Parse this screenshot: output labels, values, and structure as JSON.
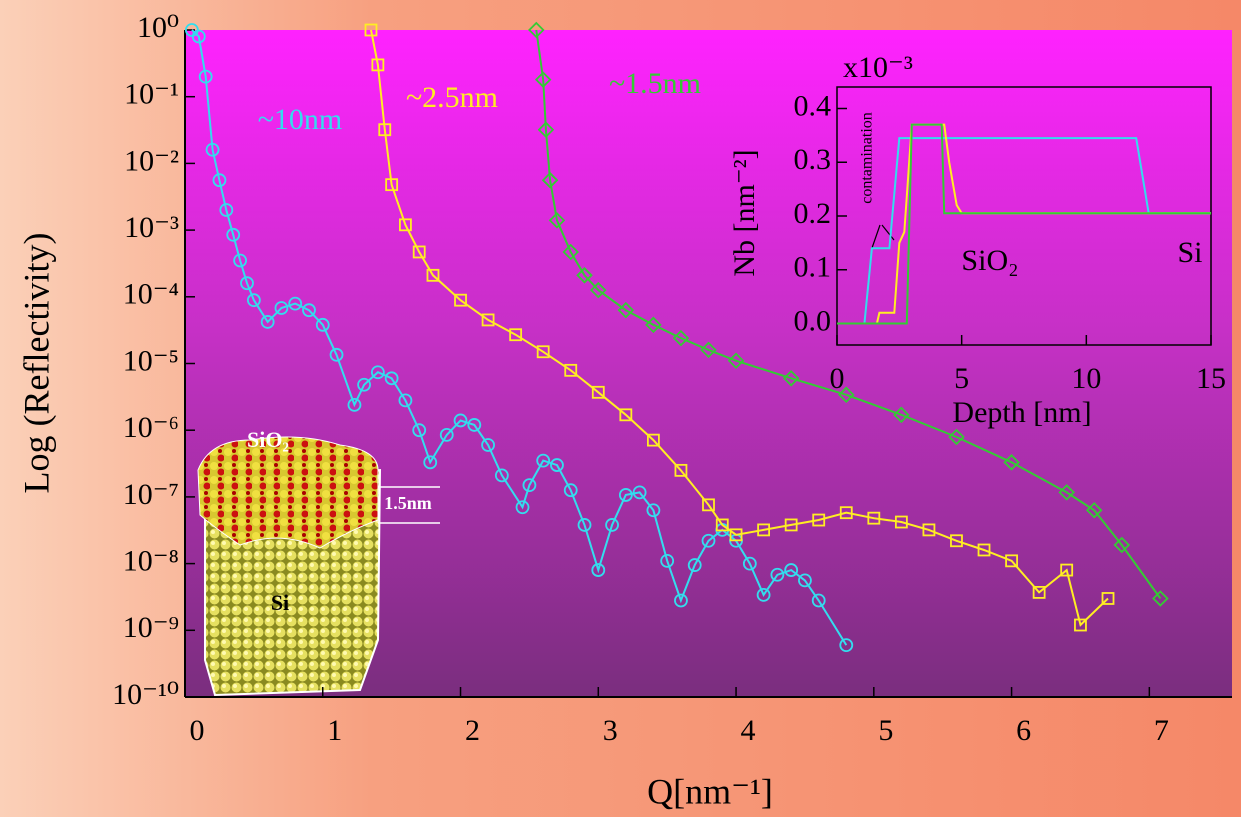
{
  "chart_data": [
    {
      "type": "line",
      "y_label": "Log (Reflectivity)",
      "x_label": "Q[nm⁻¹]",
      "log_y": true,
      "xlim": [
        0,
        7.6
      ],
      "ylim": [
        1e-10,
        1
      ],
      "xticks": [
        0,
        1,
        2,
        3,
        4,
        5,
        6,
        7
      ],
      "yticks": [
        {
          "value": 1,
          "label": "10⁰"
        },
        {
          "value": 0.1,
          "label": "10⁻¹"
        },
        {
          "value": 0.01,
          "label": "10⁻²"
        },
        {
          "value": 0.001,
          "label": "10⁻³"
        },
        {
          "value": 0.0001,
          "label": "10⁻⁴"
        },
        {
          "value": 1e-05,
          "label": "10⁻⁵"
        },
        {
          "value": 1e-06,
          "label": "10⁻⁶"
        },
        {
          "value": 1e-07,
          "label": "10⁻⁷"
        },
        {
          "value": 1e-08,
          "label": "10⁻⁸"
        },
        {
          "value": 1e-09,
          "label": "10⁻⁹"
        },
        {
          "value": 1e-10,
          "label": "10⁻¹⁰"
        }
      ],
      "series": [
        {
          "name": "~10nm",
          "color": "#33ddee",
          "marker": "circle",
          "x": [
            0.05,
            0.1,
            0.15,
            0.2,
            0.25,
            0.3,
            0.35,
            0.4,
            0.45,
            0.5,
            0.6,
            0.7,
            0.8,
            0.9,
            1.0,
            1.1,
            1.23,
            1.3,
            1.4,
            1.5,
            1.6,
            1.7,
            1.78,
            1.9,
            2.0,
            2.1,
            2.2,
            2.3,
            2.45,
            2.5,
            2.6,
            2.7,
            2.8,
            2.9,
            3.0,
            3.1,
            3.2,
            3.3,
            3.4,
            3.5,
            3.6,
            3.7,
            3.8,
            3.9,
            4.0,
            4.1,
            4.2,
            4.3,
            4.4,
            4.5,
            4.6,
            4.8
          ],
          "values": [
            1,
            0.8,
            0.2,
            0.016,
            0.0056,
            0.002,
            0.00085,
            0.00035,
            0.00016,
            8.9e-05,
            4.2e-05,
            6.8e-05,
            7.9e-05,
            6.3e-05,
            3.8e-05,
            1.35e-05,
            2.4e-06,
            4.8e-06,
            7.4e-06,
            6e-06,
            2.8e-06,
            1e-06,
            3.3e-07,
            8.5e-07,
            1.4e-06,
            1.2e-06,
            6e-07,
            2.1e-07,
            7e-08,
            1.5e-07,
            3.5e-07,
            3e-07,
            1.26e-07,
            3.8e-08,
            8e-09,
            3.8e-08,
            1.07e-07,
            1.17e-07,
            6.3e-08,
            1.1e-08,
            2.8e-09,
            9.5e-09,
            2.2e-08,
            3.2e-08,
            2.2e-08,
            1e-08,
            3.4e-09,
            6.8e-09,
            8e-09,
            5.6e-09,
            2.8e-09,
            6e-10
          ]
        },
        {
          "name": "~2.5nm",
          "color": "#ffee22",
          "marker": "square",
          "x": [
            1.35,
            1.4,
            1.45,
            1.5,
            1.6,
            1.7,
            1.8,
            2.0,
            2.2,
            2.4,
            2.6,
            2.8,
            3.0,
            3.2,
            3.4,
            3.6,
            3.8,
            3.9,
            4.0,
            4.2,
            4.4,
            4.6,
            4.8,
            5.0,
            5.2,
            5.4,
            5.6,
            5.8,
            6.0,
            6.2,
            6.4,
            6.5,
            6.7
          ],
          "values": [
            1,
            0.3,
            0.032,
            0.0048,
            0.0012,
            0.00047,
            0.00021,
            8.9e-05,
            4.5e-05,
            2.7e-05,
            1.5e-05,
            7.9e-06,
            3.7e-06,
            1.7e-06,
            7.1e-07,
            2.5e-07,
            7.6e-08,
            3.8e-08,
            2.7e-08,
            3.2e-08,
            3.8e-08,
            4.5e-08,
            5.8e-08,
            4.8e-08,
            4.2e-08,
            3.2e-08,
            2.2e-08,
            1.6e-08,
            1.1e-08,
            3.7e-09,
            8e-09,
            1.2e-09,
            3e-09
          ]
        },
        {
          "name": "~1.5nm",
          "color": "#33cc33",
          "marker": "diamond",
          "x": [
            2.55,
            2.6,
            2.62,
            2.65,
            2.7,
            2.8,
            2.9,
            3.0,
            3.2,
            3.4,
            3.6,
            3.8,
            4.0,
            4.4,
            4.8,
            5.2,
            5.6,
            6.0,
            6.4,
            6.6,
            6.8,
            7.08
          ],
          "values": [
            1,
            0.18,
            0.032,
            0.0056,
            0.0014,
            0.00047,
            0.00021,
            0.000126,
            6.3e-05,
            3.8e-05,
            2.4e-05,
            1.6e-05,
            1.1e-05,
            6e-06,
            3.4e-06,
            1.7e-06,
            7.9e-07,
            3.3e-07,
            1.17e-07,
            6.3e-08,
            1.9e-08,
            3e-09
          ]
        }
      ],
      "annotations": [
        "SiO₂",
        "1.5nm",
        "Si"
      ]
    },
    {
      "type": "line",
      "x_label": "Depth [nm]",
      "y_label": "Nb [nm⁻²]",
      "multiplier": "x10⁻³",
      "xlim": [
        0,
        15
      ],
      "ylim": [
        -0.04,
        0.44
      ],
      "xticks": [
        0,
        5,
        10,
        15
      ],
      "yticks": [
        {
          "value": 0,
          "label": "0.0"
        },
        0.1,
        0.2,
        0.3,
        0.4
      ],
      "series": [
        {
          "color": "#33ddee",
          "x": [
            0,
            1.1,
            1.4,
            2.1,
            2.5,
            12,
            12.5,
            15
          ],
          "values": [
            0,
            0,
            0.14,
            0.14,
            0.345,
            0.345,
            0.205,
            0.205
          ]
        },
        {
          "color": "#ffee22",
          "x": [
            0,
            1.6,
            1.7,
            2.3,
            2.5,
            2.7,
            3.0,
            4.3,
            4.5,
            4.8,
            5.0,
            15
          ],
          "values": [
            0,
            0,
            0.02,
            0.02,
            0.15,
            0.17,
            0.37,
            0.37,
            0.3,
            0.22,
            0.205,
            0.205
          ]
        },
        {
          "color": "#33cc33",
          "x": [
            0,
            2.8,
            3.0,
            4.2,
            4.3,
            15
          ],
          "values": [
            0,
            0,
            0.37,
            0.37,
            0.205,
            0.205
          ]
        }
      ],
      "annotations": [
        "contamination",
        "SiO₂",
        "Si"
      ]
    }
  ]
}
